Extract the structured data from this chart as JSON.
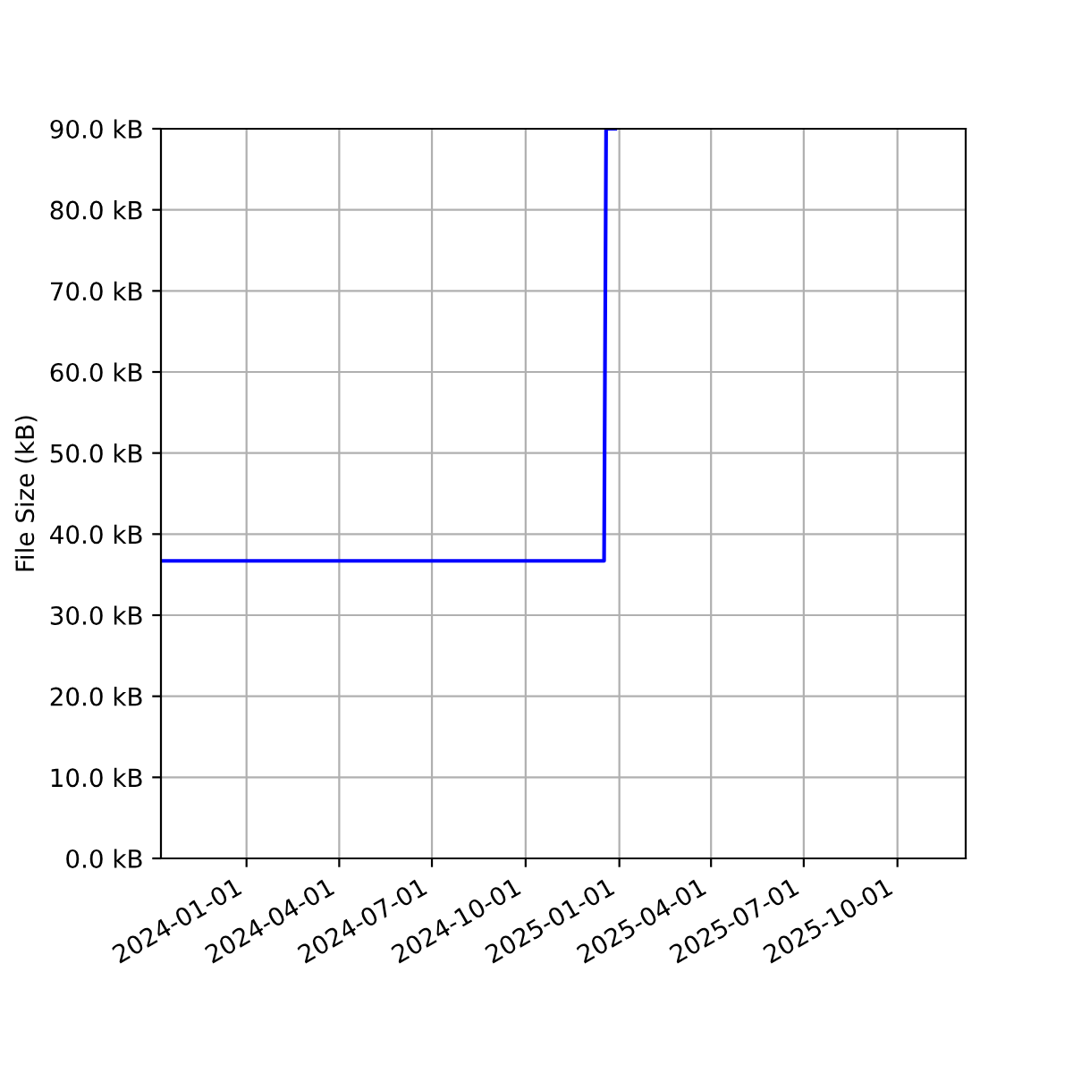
{
  "chart_data": {
    "type": "line",
    "ylabel": "File Size (kB)",
    "series": [
      {
        "color": "#0000ff",
        "x": [
          "2023-10-09",
          "2024-12-17",
          "2024-12-19",
          "2024-12-28"
        ],
        "values": [
          36.7,
          36.7,
          90,
          90
        ]
      }
    ],
    "xlim": [
      "2023-10-09",
      "2025-12-07"
    ],
    "xticks": [
      {
        "value": "2024-01-01",
        "label": "2024-01-01"
      },
      {
        "value": "2024-04-01",
        "label": "2024-04-01"
      },
      {
        "value": "2024-07-01",
        "label": "2024-07-01"
      },
      {
        "value": "2024-10-01",
        "label": "2024-10-01"
      },
      {
        "value": "2025-01-01",
        "label": "2025-01-01"
      },
      {
        "value": "2025-04-01",
        "label": "2025-04-01"
      },
      {
        "value": "2025-07-01",
        "label": "2025-07-01"
      },
      {
        "value": "2025-10-01",
        "label": "2025-10-01"
      }
    ],
    "ylim": [
      0,
      90
    ],
    "yticks": [
      {
        "value": 0,
        "label": "0.0 kB"
      },
      {
        "value": 10,
        "label": "10.0 kB"
      },
      {
        "value": 20,
        "label": "20.0 kB"
      },
      {
        "value": 30,
        "label": "30.0 kB"
      },
      {
        "value": 40,
        "label": "40.0 kB"
      },
      {
        "value": 50,
        "label": "50.0 kB"
      },
      {
        "value": 60,
        "label": "60.0 kB"
      },
      {
        "value": 70,
        "label": "70.0 kB"
      },
      {
        "value": 80,
        "label": "80.0 kB"
      },
      {
        "value": 90,
        "label": "90.0 kB"
      }
    ],
    "grid": true
  }
}
